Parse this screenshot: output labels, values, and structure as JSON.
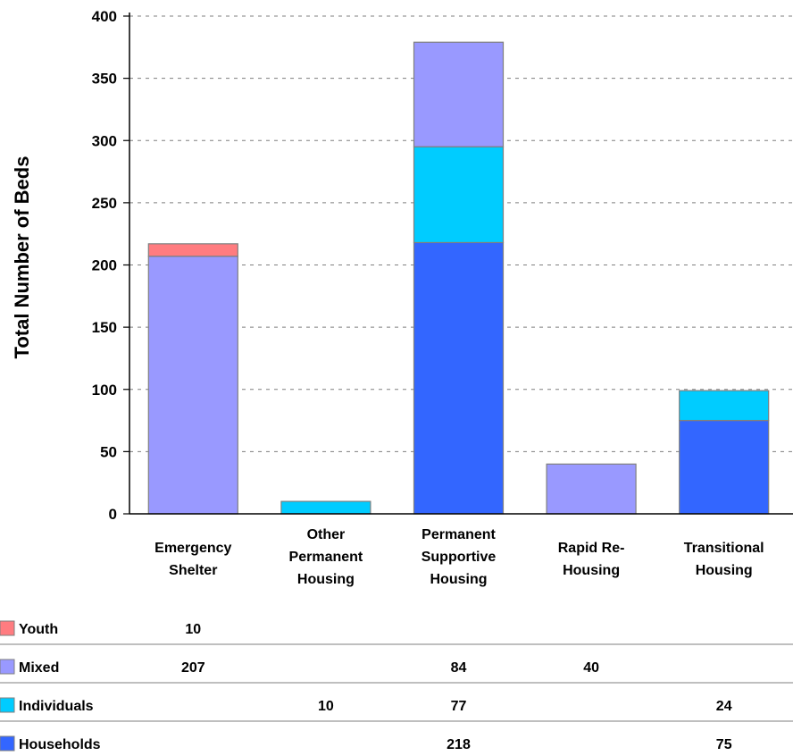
{
  "chart_data": {
    "type": "bar",
    "stacked": true,
    "ylabel": "Total Number of Beds",
    "xlabel": "",
    "ylim": [
      0,
      400
    ],
    "yticks": [
      0,
      50,
      100,
      150,
      200,
      250,
      300,
      350,
      400
    ],
    "grid": "horizontal dashed",
    "categories": [
      [
        "Emergency",
        "Shelter"
      ],
      [
        "Other",
        "Permanent",
        "Housing"
      ],
      [
        "Permanent",
        "Supportive",
        "Housing"
      ],
      [
        "Rapid Re-",
        "Housing"
      ],
      [
        "Transitional",
        "Housing"
      ]
    ],
    "series": [
      {
        "name": "Households",
        "color": "#3366ff",
        "values": [
          null,
          null,
          218,
          null,
          75
        ]
      },
      {
        "name": "Individuals",
        "color": "#00ccff",
        "values": [
          null,
          10,
          77,
          null,
          24
        ]
      },
      {
        "name": "Mixed",
        "color": "#9999ff",
        "values": [
          207,
          null,
          84,
          40,
          null
        ]
      },
      {
        "name": "Youth",
        "color": "#ff7c80",
        "values": [
          10,
          null,
          null,
          null,
          null
        ]
      }
    ],
    "table_order": [
      "Youth",
      "Mixed",
      "Individuals",
      "Households"
    ]
  }
}
